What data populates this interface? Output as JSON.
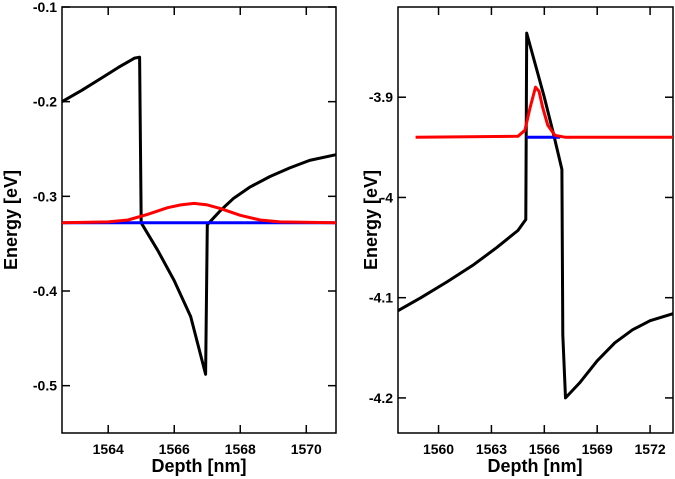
{
  "chart_data": [
    {
      "type": "line",
      "xlabel": "Depth [nm]",
      "ylabel": "Energy [eV]",
      "xlim": [
        1562.6,
        1570.9
      ],
      "ylim": [
        -0.55,
        -0.1
      ],
      "xticks": [
        1564,
        1566,
        1568,
        1570
      ],
      "xtick_labels": [
        "1564",
        "1566",
        "1568",
        "1570"
      ],
      "yticks": [
        -0.5,
        -0.4,
        -0.3,
        -0.2,
        -0.1
      ],
      "ytick_labels": [
        "-0.5",
        "-0.4",
        "-0.3",
        "-0.2",
        "-0.1"
      ],
      "grid": false,
      "series": [
        {
          "color": "#000000",
          "x": [
            1562.6,
            1563.2,
            1563.8,
            1564.3,
            1564.8,
            1564.95,
            1565.0,
            1565.5,
            1566.0,
            1566.5,
            1566.95,
            1567.0,
            1567.4,
            1567.8,
            1568.3,
            1568.9,
            1569.5,
            1570.1,
            1570.9
          ],
          "y": [
            -0.2,
            -0.188,
            -0.175,
            -0.164,
            -0.154,
            -0.153,
            -0.328,
            -0.357,
            -0.389,
            -0.427,
            -0.488,
            -0.33,
            -0.315,
            -0.302,
            -0.29,
            -0.279,
            -0.27,
            -0.262,
            -0.256
          ]
        },
        {
          "color": "#0000ff",
          "x": [
            1562.6,
            1570.9
          ],
          "y": [
            -0.328,
            -0.328
          ]
        },
        {
          "color": "#ff0000",
          "x": [
            1562.6,
            1564.0,
            1564.6,
            1565.2,
            1565.8,
            1566.2,
            1566.6,
            1567.0,
            1567.4,
            1568.0,
            1568.6,
            1569.2,
            1570.9
          ],
          "y": [
            -0.328,
            -0.327,
            -0.325,
            -0.319,
            -0.312,
            -0.309,
            -0.3075,
            -0.309,
            -0.313,
            -0.32,
            -0.325,
            -0.327,
            -0.328
          ]
        }
      ]
    },
    {
      "type": "line",
      "xlabel": "Depth [nm]",
      "ylabel": "Energy [eV]",
      "xlim": [
        1557.7,
        1573.3
      ],
      "ylim": [
        -4.235,
        -3.81
      ],
      "xticks": [
        1560,
        1563,
        1566,
        1569,
        1572
      ],
      "xtick_labels": [
        "1560",
        "1563",
        "1566",
        "1569",
        "1572"
      ],
      "yticks": [
        -4.2,
        -4.1,
        -4.0,
        -3.9
      ],
      "ytick_labels": [
        "-4.2",
        "-4.1",
        "-4",
        "-3.9"
      ],
      "grid": false,
      "series": [
        {
          "color": "#000000",
          "x": [
            1557.7,
            1559.0,
            1560.5,
            1562.0,
            1563.3,
            1564.5,
            1564.95,
            1565.0,
            1565.5,
            1566.0,
            1566.5,
            1567.0,
            1567.05,
            1567.2,
            1568.0,
            1569.0,
            1570.0,
            1571.0,
            1572.0,
            1573.3
          ],
          "y": [
            -4.113,
            -4.1,
            -4.084,
            -4.067,
            -4.05,
            -4.033,
            -4.022,
            -3.836,
            -3.868,
            -3.9,
            -3.935,
            -3.972,
            -4.137,
            -4.2,
            -4.185,
            -4.163,
            -4.145,
            -4.132,
            -4.123,
            -4.116
          ]
        },
        {
          "color": "#0000ff",
          "x": [
            1565.0,
            1566.9
          ],
          "y": [
            -3.94,
            -3.94
          ]
        },
        {
          "color": "#ff0000",
          "x": [
            1558.7,
            1564.5,
            1564.9,
            1565.2,
            1565.5,
            1565.7,
            1565.9,
            1566.2,
            1566.6,
            1567.2,
            1573.3
          ],
          "y": [
            -3.94,
            -3.939,
            -3.933,
            -3.91,
            -3.89,
            -3.894,
            -3.91,
            -3.928,
            -3.938,
            -3.94,
            -3.94
          ]
        }
      ]
    }
  ]
}
